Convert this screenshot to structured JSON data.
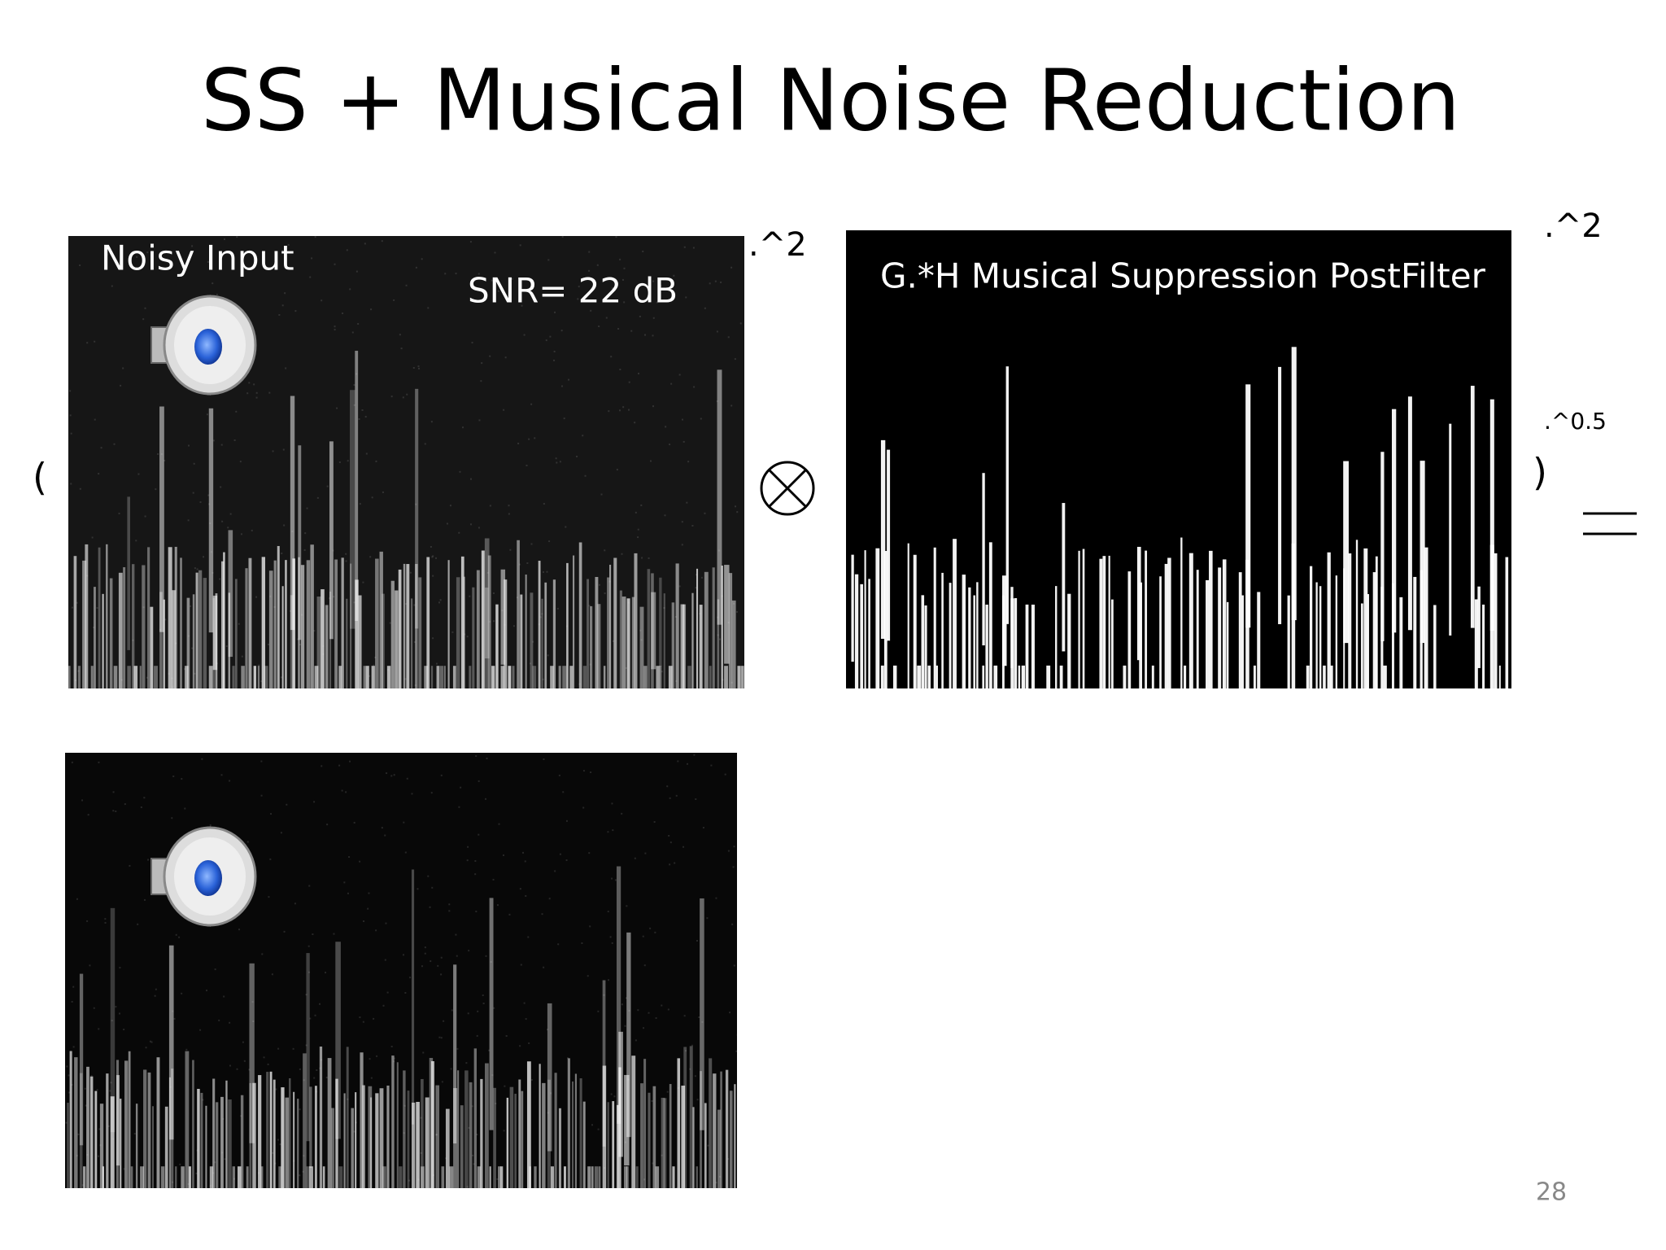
{
  "slide": {
    "title": "SS + Musical Noise Reduction",
    "noisy_label": "Noisy Input",
    "snr_label": "SNR= 22 dB",
    "power_left": ".^2",
    "filter_label": "G.*H Musical Suppression PostFilter",
    "power_right": ".^2",
    "root": ".^0.5",
    "open_paren": "(",
    "close_paren": ")",
    "page_number": "28"
  }
}
